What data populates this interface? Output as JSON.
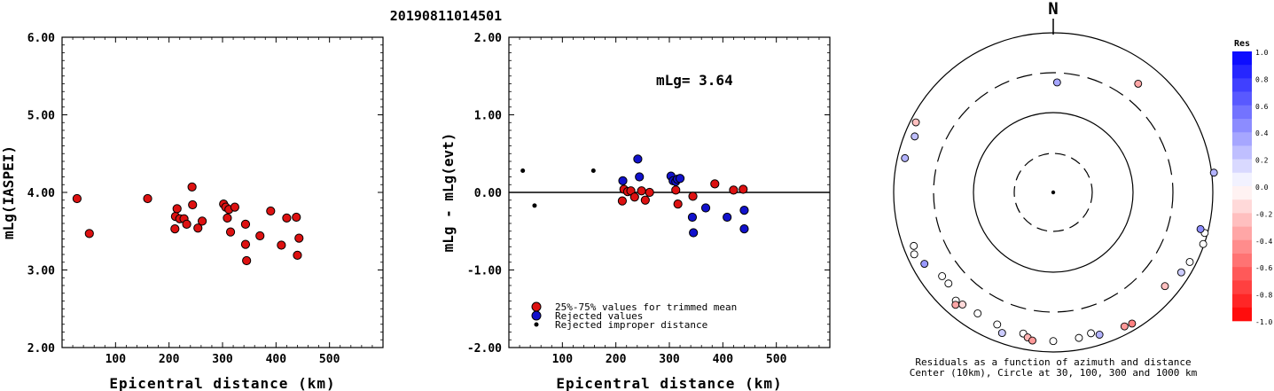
{
  "title": "20190811014501",
  "chart_data": [
    {
      "type": "scatter",
      "xlabel": "Epicentral distance (km)",
      "ylabel": "mLg(IASPEI)",
      "xlim": [
        0,
        600
      ],
      "ylim": [
        2.0,
        6.0
      ],
      "xticks": [
        "100",
        "200",
        "300",
        "400",
        "500"
      ],
      "yticks": [
        "2.00",
        "3.00",
        "4.00",
        "5.00",
        "6.00"
      ],
      "series": [
        {
          "color": "#dd1111",
          "points": [
            [
              28,
              3.92
            ],
            [
              51,
              3.47
            ],
            [
              160,
              3.92
            ],
            [
              211,
              3.53
            ],
            [
              212,
              3.69
            ],
            [
              215,
              3.79
            ],
            [
              220,
              3.66
            ],
            [
              228,
              3.66
            ],
            [
              233,
              3.59
            ],
            [
              243,
              4.07
            ],
            [
              244,
              3.84
            ],
            [
              254,
              3.54
            ],
            [
              262,
              3.63
            ],
            [
              302,
              3.85
            ],
            [
              306,
              3.81
            ],
            [
              309,
              3.67
            ],
            [
              312,
              3.78
            ],
            [
              315,
              3.49
            ],
            [
              323,
              3.81
            ],
            [
              343,
              3.59
            ],
            [
              343,
              3.33
            ],
            [
              345,
              3.12
            ],
            [
              370,
              3.44
            ],
            [
              390,
              3.76
            ],
            [
              410,
              3.32
            ],
            [
              420,
              3.67
            ],
            [
              438,
              3.68
            ],
            [
              440,
              3.19
            ],
            [
              443,
              3.41
            ]
          ]
        }
      ]
    },
    {
      "type": "scatter",
      "xlabel": "Epicentral distance (km)",
      "ylabel": "mLg - mLg(evt)",
      "xlim": [
        0,
        600
      ],
      "ylim": [
        -2.0,
        2.0
      ],
      "xticks": [
        "100",
        "200",
        "300",
        "400",
        "500"
      ],
      "yticks": [
        "-2.00",
        "-1.00",
        "0.00",
        "1.00",
        "2.00"
      ],
      "annotation": "mLg= 3.64",
      "series": [
        {
          "name": "25%-75% values for trimmed mean",
          "color": "#dd1111",
          "points": [
            [
              212,
              -0.11
            ],
            [
              215,
              0.04
            ],
            [
              222,
              0.01
            ],
            [
              228,
              0.02
            ],
            [
              235,
              -0.06
            ],
            [
              248,
              0.02
            ],
            [
              255,
              -0.1
            ],
            [
              263,
              0.0
            ],
            [
              312,
              0.03
            ],
            [
              316,
              -0.15
            ],
            [
              344,
              -0.05
            ],
            [
              385,
              0.11
            ],
            [
              420,
              0.03
            ],
            [
              438,
              0.04
            ]
          ]
        },
        {
          "name": "Rejected values",
          "color": "#1111cc",
          "points": [
            [
              213,
              0.15
            ],
            [
              241,
              0.43
            ],
            [
              244,
              0.2
            ],
            [
              303,
              0.21
            ],
            [
              307,
              0.15
            ],
            [
              312,
              0.14
            ],
            [
              315,
              0.17
            ],
            [
              320,
              0.18
            ],
            [
              343,
              -0.32
            ],
            [
              345,
              -0.52
            ],
            [
              368,
              -0.2
            ],
            [
              408,
              -0.32
            ],
            [
              440,
              -0.23
            ],
            [
              440,
              -0.47
            ]
          ]
        },
        {
          "name": "Rejected improper distance",
          "color": "#000000",
          "points": [
            [
              26,
              0.28
            ],
            [
              48,
              -0.17
            ],
            [
              158,
              0.28
            ]
          ]
        }
      ]
    },
    {
      "type": "polar-scatter",
      "north_label": "N",
      "caption_line1": "Residuals as a function of azimuth and distance",
      "caption_line2": "Center (10km), Circle at 30, 100, 300 and 1000 km",
      "rings_km": [
        30,
        100,
        300,
        1000
      ],
      "points": [
        {
          "az": 2,
          "dist": 230,
          "res": 0.35
        },
        {
          "az": 38,
          "dist": 520,
          "res": -0.35
        },
        {
          "az": 283,
          "dist": 800,
          "res": 0.3
        },
        {
          "az": 292,
          "dist": 735,
          "res": 0.25
        },
        {
          "az": 297,
          "dist": 850,
          "res": -0.25
        },
        {
          "az": 246,
          "dist": 800,
          "res": 0.0
        },
        {
          "az": 249,
          "dist": 735,
          "res": 0.0
        },
        {
          "az": 241,
          "dist": 690,
          "res": 0.4
        },
        {
          "az": 233,
          "dist": 540,
          "res": 0.0
        },
        {
          "az": 229,
          "dist": 535,
          "res": 0.0
        },
        {
          "az": 222,
          "dist": 655,
          "res": 0.0
        },
        {
          "az": 221,
          "dist": 725,
          "res": -0.35
        },
        {
          "az": 219,
          "dist": 630,
          "res": -0.15
        },
        {
          "az": 212,
          "dist": 600,
          "res": 0.0
        },
        {
          "az": 203,
          "dist": 615,
          "res": 0.0
        },
        {
          "az": 200,
          "dist": 740,
          "res": 0.2
        },
        {
          "az": 192,
          "dist": 630,
          "res": 0.0
        },
        {
          "az": 190,
          "dist": 690,
          "res": -0.3
        },
        {
          "az": 188,
          "dist": 740,
          "res": -0.4
        },
        {
          "az": 180,
          "dist": 720,
          "res": 0.0
        },
        {
          "az": 170,
          "dist": 700,
          "res": 0.0
        },
        {
          "az": 165,
          "dist": 660,
          "res": 0.0
        },
        {
          "az": 162,
          "dist": 740,
          "res": 0.3
        },
        {
          "az": 152,
          "dist": 790,
          "res": -0.4
        },
        {
          "az": 149,
          "dist": 820,
          "res": -0.5
        },
        {
          "az": 130,
          "dist": 660,
          "res": -0.25
        },
        {
          "az": 122,
          "dist": 770,
          "res": 0.2
        },
        {
          "az": 117,
          "dist": 825,
          "res": 0.0
        },
        {
          "az": 109,
          "dist": 970,
          "res": 0.0
        },
        {
          "az": 105,
          "dist": 920,
          "res": 0.0
        },
        {
          "az": 104,
          "dist": 790,
          "res": 0.45
        },
        {
          "az": 83,
          "dist": 1050,
          "res": 0.3
        }
      ]
    },
    {
      "type": "colorbar",
      "title": "Res",
      "ticks": [
        "1.0",
        "0.8",
        "0.6",
        "0.4",
        "0.2",
        "0.0",
        "-0.2",
        "-0.4",
        "-0.6",
        "-0.8",
        "-1.0"
      ],
      "max_color": "#0000ff",
      "min_color": "#ff0000"
    }
  ]
}
